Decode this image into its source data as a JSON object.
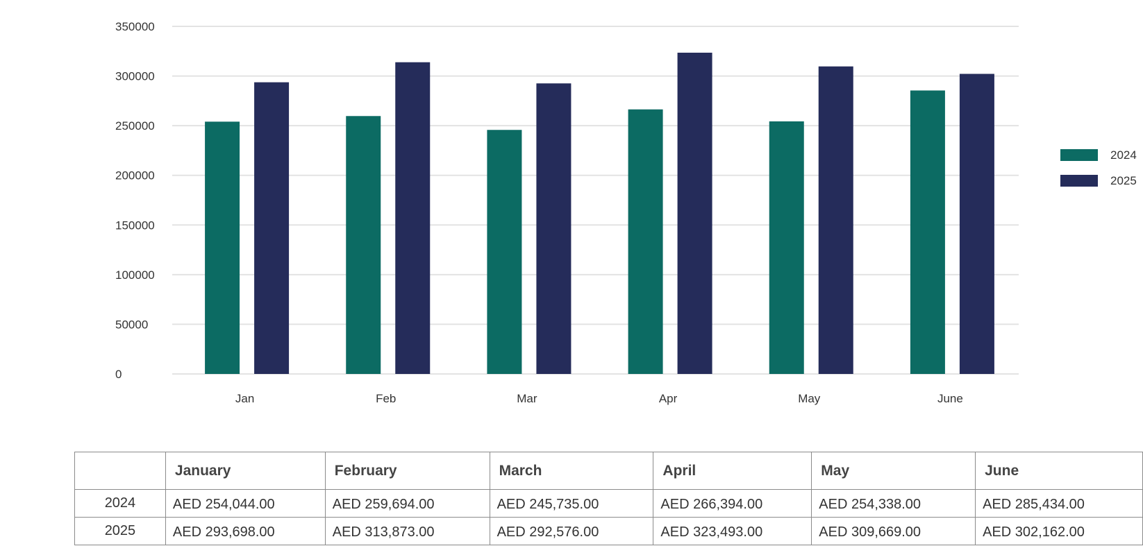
{
  "chart_data": {
    "type": "bar",
    "categories": [
      "Jan",
      "Feb",
      "Mar",
      "Apr",
      "May",
      "June"
    ],
    "series": [
      {
        "name": "2024",
        "color": "#0c6b63",
        "values": [
          254044,
          259694,
          245735,
          266394,
          254338,
          285434
        ]
      },
      {
        "name": "2025",
        "color": "#252c5a",
        "values": [
          293698,
          313873,
          292576,
          323493,
          309669,
          302162
        ]
      }
    ],
    "yticks": [
      "0",
      "50000",
      "100000",
      "150000",
      "200000",
      "250000",
      "300000",
      "350000"
    ],
    "ylim": [
      0,
      350000
    ],
    "grid": true,
    "legend_position": "right"
  },
  "table": {
    "headers": [
      "",
      "January",
      "February",
      "March",
      "April",
      "May",
      "June"
    ],
    "rows": [
      {
        "year": "2024",
        "cells": [
          "AED 254,044.00",
          "AED 259,694.00",
          "AED 245,735.00",
          "AED 266,394.00",
          "AED 254,338.00",
          "AED 285,434.00"
        ]
      },
      {
        "year": "2025",
        "cells": [
          "AED 293,698.00",
          "AED 313,873.00",
          "AED 292,576.00",
          "AED 323,493.00",
          "AED 309,669.00",
          "AED 302,162.00"
        ]
      }
    ]
  }
}
